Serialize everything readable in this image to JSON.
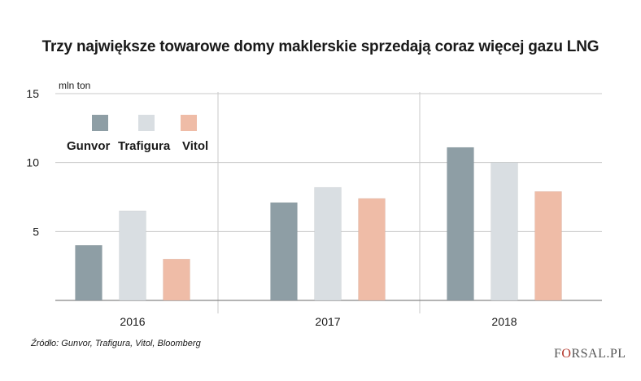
{
  "title": "Trzy największe towarowe domy maklerskie sprzedają coraz więcej gazu LNG",
  "unit_label": "mln ton",
  "source": "Źródło: Gunvor, Trafigura, Vitol, Bloomberg",
  "logo": {
    "first": "F",
    "mark": "O",
    "rest": "RSAL.PL",
    "text": "FORSAL.PL"
  },
  "colors": {
    "Gunvor": "#8e9ea5",
    "Trafigura": "#d9dee2",
    "Vitol": "#efbca7",
    "grid": "#c9c9c9",
    "axis": "#888888"
  },
  "chart_data": {
    "type": "bar",
    "title": "Trzy największe towarowe domy maklerskie sprzedają coraz więcej gazu LNG",
    "ylabel": "mln ton",
    "xlabel": "",
    "categories": [
      "2016",
      "2017",
      "2018"
    ],
    "series": [
      {
        "name": "Gunvor",
        "values": [
          4.0,
          7.1,
          11.1
        ]
      },
      {
        "name": "Trafigura",
        "values": [
          6.5,
          8.2,
          10.0
        ]
      },
      {
        "name": "Vitol",
        "values": [
          3.0,
          7.4,
          7.9
        ]
      }
    ],
    "ylim": [
      0,
      15
    ],
    "yticks": [
      5,
      10,
      15
    ],
    "grid": true,
    "legend": "top-left"
  }
}
